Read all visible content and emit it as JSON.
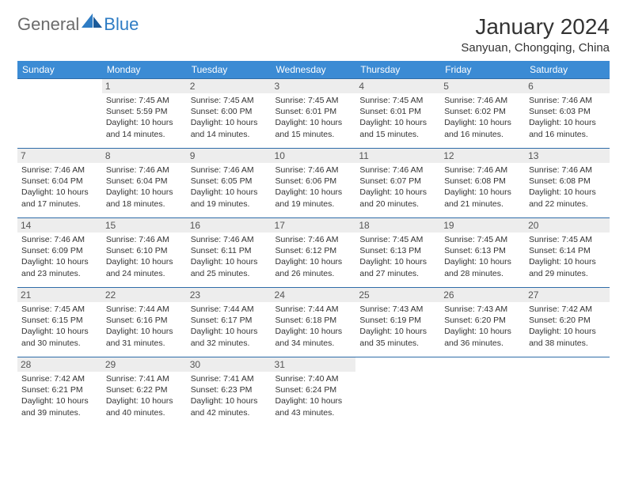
{
  "brand": {
    "part1": "General",
    "part2": "Blue"
  },
  "title": "January 2024",
  "location": "Sanyuan, Chongqing, China",
  "colors": {
    "header_bg": "#3b8bd4",
    "row_border": "#2e6ca8",
    "daynum_bg": "#ededed",
    "text": "#333333",
    "brand_gray": "#6b6b6b",
    "brand_blue": "#2e7cc4"
  },
  "weekdays": [
    "Sunday",
    "Monday",
    "Tuesday",
    "Wednesday",
    "Thursday",
    "Friday",
    "Saturday"
  ],
  "weeks": [
    [
      null,
      {
        "n": "1",
        "sr": "7:45 AM",
        "ss": "5:59 PM",
        "dl": "10 hours and 14 minutes."
      },
      {
        "n": "2",
        "sr": "7:45 AM",
        "ss": "6:00 PM",
        "dl": "10 hours and 14 minutes."
      },
      {
        "n": "3",
        "sr": "7:45 AM",
        "ss": "6:01 PM",
        "dl": "10 hours and 15 minutes."
      },
      {
        "n": "4",
        "sr": "7:45 AM",
        "ss": "6:01 PM",
        "dl": "10 hours and 15 minutes."
      },
      {
        "n": "5",
        "sr": "7:46 AM",
        "ss": "6:02 PM",
        "dl": "10 hours and 16 minutes."
      },
      {
        "n": "6",
        "sr": "7:46 AM",
        "ss": "6:03 PM",
        "dl": "10 hours and 16 minutes."
      }
    ],
    [
      {
        "n": "7",
        "sr": "7:46 AM",
        "ss": "6:04 PM",
        "dl": "10 hours and 17 minutes."
      },
      {
        "n": "8",
        "sr": "7:46 AM",
        "ss": "6:04 PM",
        "dl": "10 hours and 18 minutes."
      },
      {
        "n": "9",
        "sr": "7:46 AM",
        "ss": "6:05 PM",
        "dl": "10 hours and 19 minutes."
      },
      {
        "n": "10",
        "sr": "7:46 AM",
        "ss": "6:06 PM",
        "dl": "10 hours and 19 minutes."
      },
      {
        "n": "11",
        "sr": "7:46 AM",
        "ss": "6:07 PM",
        "dl": "10 hours and 20 minutes."
      },
      {
        "n": "12",
        "sr": "7:46 AM",
        "ss": "6:08 PM",
        "dl": "10 hours and 21 minutes."
      },
      {
        "n": "13",
        "sr": "7:46 AM",
        "ss": "6:08 PM",
        "dl": "10 hours and 22 minutes."
      }
    ],
    [
      {
        "n": "14",
        "sr": "7:46 AM",
        "ss": "6:09 PM",
        "dl": "10 hours and 23 minutes."
      },
      {
        "n": "15",
        "sr": "7:46 AM",
        "ss": "6:10 PM",
        "dl": "10 hours and 24 minutes."
      },
      {
        "n": "16",
        "sr": "7:46 AM",
        "ss": "6:11 PM",
        "dl": "10 hours and 25 minutes."
      },
      {
        "n": "17",
        "sr": "7:46 AM",
        "ss": "6:12 PM",
        "dl": "10 hours and 26 minutes."
      },
      {
        "n": "18",
        "sr": "7:45 AM",
        "ss": "6:13 PM",
        "dl": "10 hours and 27 minutes."
      },
      {
        "n": "19",
        "sr": "7:45 AM",
        "ss": "6:13 PM",
        "dl": "10 hours and 28 minutes."
      },
      {
        "n": "20",
        "sr": "7:45 AM",
        "ss": "6:14 PM",
        "dl": "10 hours and 29 minutes."
      }
    ],
    [
      {
        "n": "21",
        "sr": "7:45 AM",
        "ss": "6:15 PM",
        "dl": "10 hours and 30 minutes."
      },
      {
        "n": "22",
        "sr": "7:44 AM",
        "ss": "6:16 PM",
        "dl": "10 hours and 31 minutes."
      },
      {
        "n": "23",
        "sr": "7:44 AM",
        "ss": "6:17 PM",
        "dl": "10 hours and 32 minutes."
      },
      {
        "n": "24",
        "sr": "7:44 AM",
        "ss": "6:18 PM",
        "dl": "10 hours and 34 minutes."
      },
      {
        "n": "25",
        "sr": "7:43 AM",
        "ss": "6:19 PM",
        "dl": "10 hours and 35 minutes."
      },
      {
        "n": "26",
        "sr": "7:43 AM",
        "ss": "6:20 PM",
        "dl": "10 hours and 36 minutes."
      },
      {
        "n": "27",
        "sr": "7:42 AM",
        "ss": "6:20 PM",
        "dl": "10 hours and 38 minutes."
      }
    ],
    [
      {
        "n": "28",
        "sr": "7:42 AM",
        "ss": "6:21 PM",
        "dl": "10 hours and 39 minutes."
      },
      {
        "n": "29",
        "sr": "7:41 AM",
        "ss": "6:22 PM",
        "dl": "10 hours and 40 minutes."
      },
      {
        "n": "30",
        "sr": "7:41 AM",
        "ss": "6:23 PM",
        "dl": "10 hours and 42 minutes."
      },
      {
        "n": "31",
        "sr": "7:40 AM",
        "ss": "6:24 PM",
        "dl": "10 hours and 43 minutes."
      },
      null,
      null,
      null
    ]
  ],
  "labels": {
    "sunrise": "Sunrise:",
    "sunset": "Sunset:",
    "daylight": "Daylight:"
  }
}
